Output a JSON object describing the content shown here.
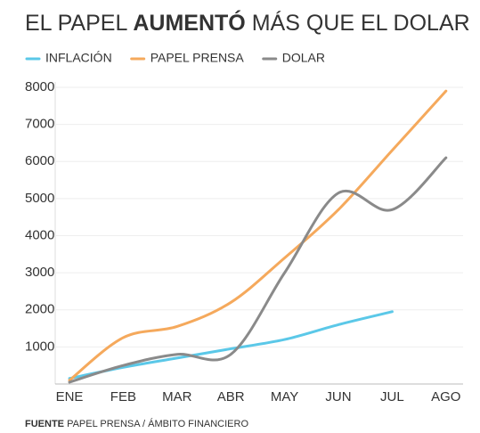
{
  "chart_data": {
    "type": "line",
    "title_parts": [
      "EL PAPEL",
      "AUMENTÓ",
      "MÁS QUE EL DOLAR"
    ],
    "source_parts": [
      "FUENTE",
      "PAPEL PRENSA / ÁMBITO FINANCIERO"
    ],
    "categories": [
      "ENE",
      "FEB",
      "MAR",
      "ABR",
      "MAY",
      "JUN",
      "JUL",
      "AGO"
    ],
    "series": [
      {
        "name": "INFLACIÓN",
        "color": "#5bc8e8",
        "values": [
          150,
          450,
          700,
          950,
          1200,
          1600,
          1950,
          null
        ]
      },
      {
        "name": "PAPEL PRENSA",
        "color": "#f5a95c",
        "values": [
          100,
          1250,
          1550,
          2200,
          3400,
          4700,
          6300,
          7900
        ]
      },
      {
        "name": "DOLAR",
        "color": "#8a8a8a",
        "values": [
          50,
          500,
          800,
          800,
          3000,
          5150,
          4700,
          6100
        ]
      }
    ],
    "ylim": [
      0,
      8000
    ],
    "yticks": [
      1000,
      2000,
      3000,
      4000,
      5000,
      6000,
      7000,
      8000
    ],
    "grid": true
  }
}
